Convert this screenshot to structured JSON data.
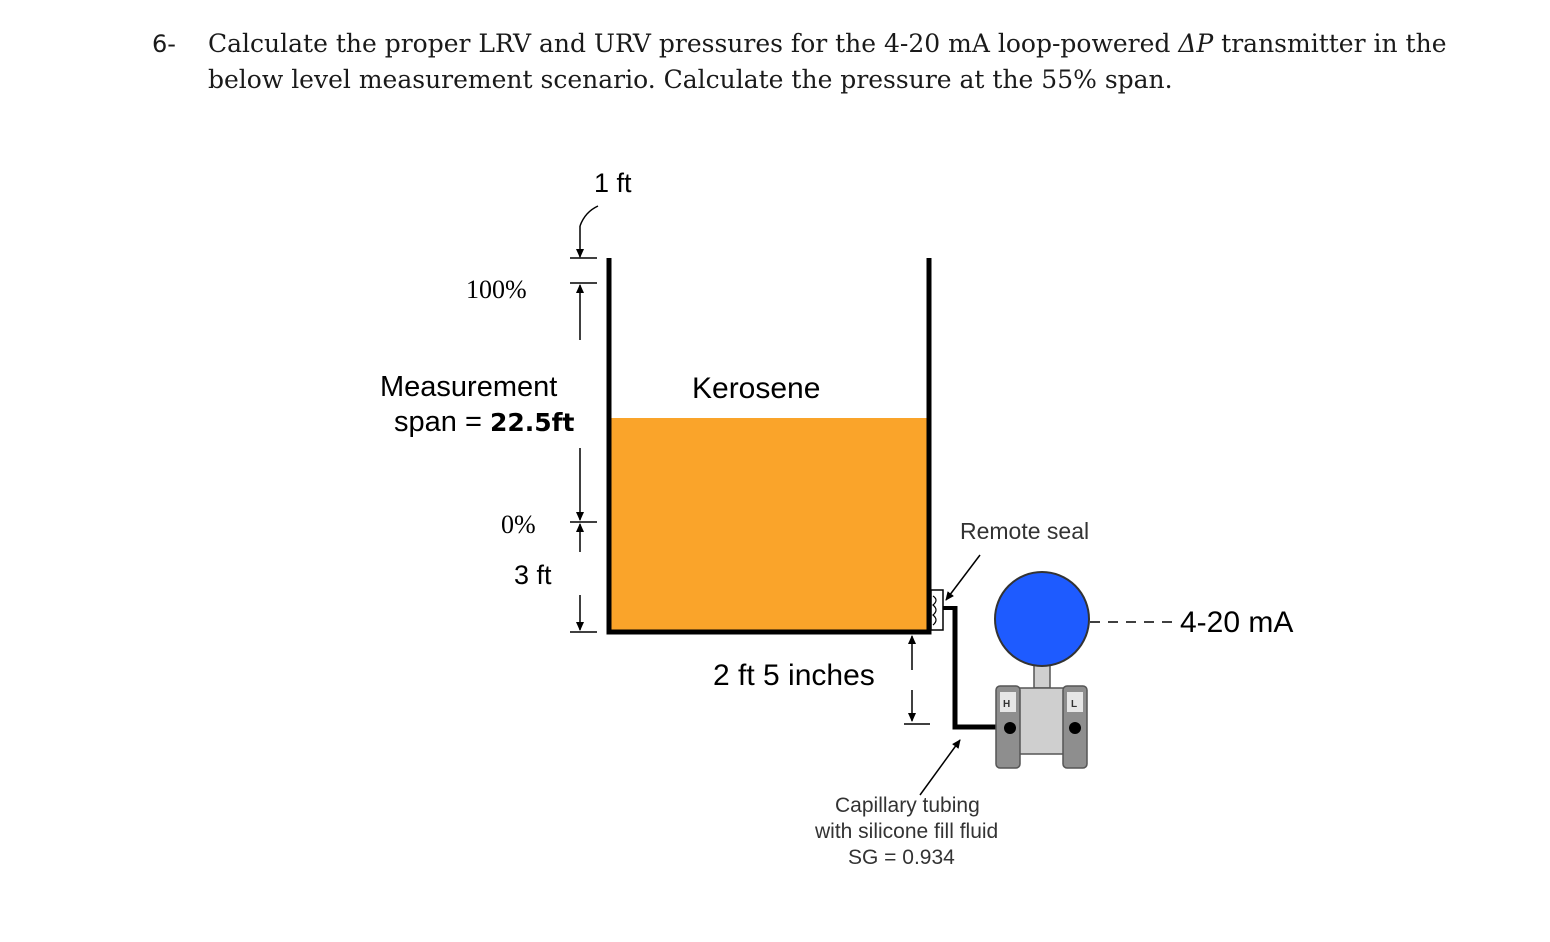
{
  "question": {
    "number": "6-",
    "line1": "Calculate the proper LRV and URV  pressures for the 4-20 mA loop-powered ",
    "delta": "ΔP",
    "line1_end": " transmitter in the",
    "line2": "below level measurement scenario. Calculate the pressure at the 55% span."
  },
  "diagram": {
    "top_label": "1 ft",
    "percent_100": "100%",
    "span_label_line1": "Measurement",
    "span_label_prefix": "span = ",
    "span_value": "22.5ft",
    "percent_0": "0%",
    "bottom_label": "3 ft",
    "fluid_name": "Kerosene",
    "tap_offset": "2 ft 5 inches",
    "remote_seal": "Remote seal",
    "signal": "4-20 mA",
    "capillary_line1": "Capillary tubing",
    "capillary_line2": "with silicone fill fluid",
    "capillary_sg": "SG = 0.934",
    "port_high": "H",
    "port_low": "L",
    "colors": {
      "kerosene": "#FAA42A",
      "transmitter_head": "#1E5BFF",
      "transmitter_body": "#CFCFCF",
      "flange": "#8E8E8E"
    }
  }
}
